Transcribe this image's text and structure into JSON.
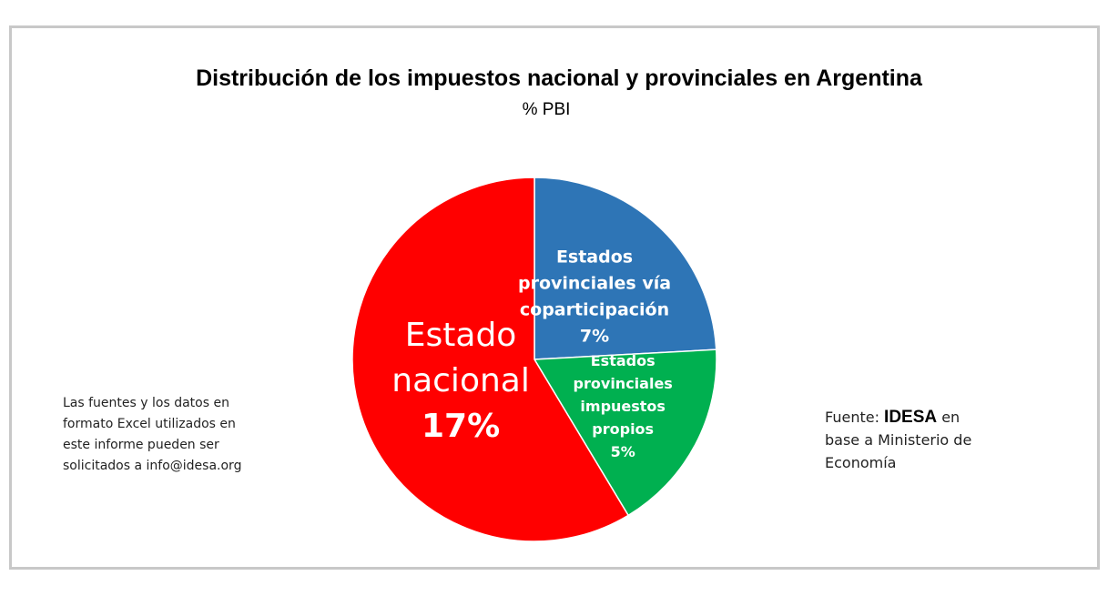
{
  "chart_data": {
    "type": "pie",
    "title": "Distribución de los impuestos nacional y provinciales en Argentina",
    "subtitle": "% PBI",
    "slices": [
      {
        "label_lines": [
          "Estados",
          "provinciales vía",
          "coparticipación"
        ],
        "value_label": "7%",
        "value": 7,
        "color": "#2e75b6"
      },
      {
        "label_lines": [
          "Estados",
          "provinciales",
          "impuestos",
          "propios"
        ],
        "value_label": "5%",
        "value": 5,
        "color": "#00b050"
      },
      {
        "label_lines": [
          "Estado",
          "nacional"
        ],
        "value_label": "17%",
        "value": 17,
        "color": "#ff0000"
      }
    ]
  },
  "note": {
    "lines": [
      "Las fuentes y los datos en",
      "formato Excel utilizados en",
      "este informe pueden ser",
      "solicitados a info@idesa.org"
    ]
  },
  "source": {
    "prefix": "Fuente: ",
    "brand": "IDESA",
    "suffix": " en",
    "lines": [
      "base a Ministerio de",
      "Economía"
    ]
  }
}
